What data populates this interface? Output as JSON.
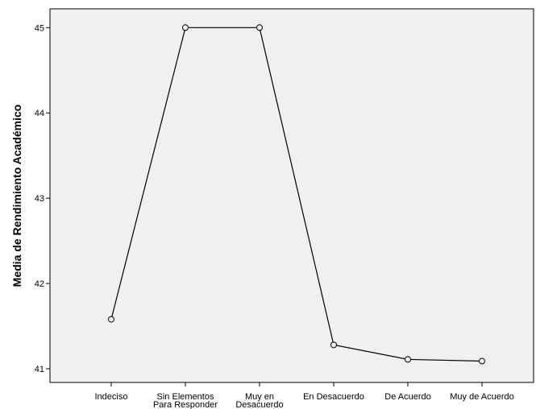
{
  "chart_data": {
    "type": "line",
    "title": "",
    "xlabel": "",
    "ylabel": "Media de Rendimiento Académico",
    "categories": [
      [
        "Indeciso"
      ],
      [
        "Sin Elementos",
        "Para Responder"
      ],
      [
        "Muy en",
        "Desacuerdo"
      ],
      [
        "En Desacuerdo"
      ],
      [
        "De Acuerdo"
      ],
      [
        "Muy de Acuerdo"
      ]
    ],
    "series": [
      {
        "values": [
          41.58,
          45.0,
          45.0,
          41.28,
          41.11,
          41.09
        ],
        "color": "#000000",
        "marker": "open-circle"
      }
    ],
    "yticks": [
      41,
      42,
      43,
      44,
      45
    ],
    "ylim": [
      40.84,
      45.22
    ],
    "grid": false,
    "legend": "none",
    "plot_background": "#f0f0f0"
  }
}
